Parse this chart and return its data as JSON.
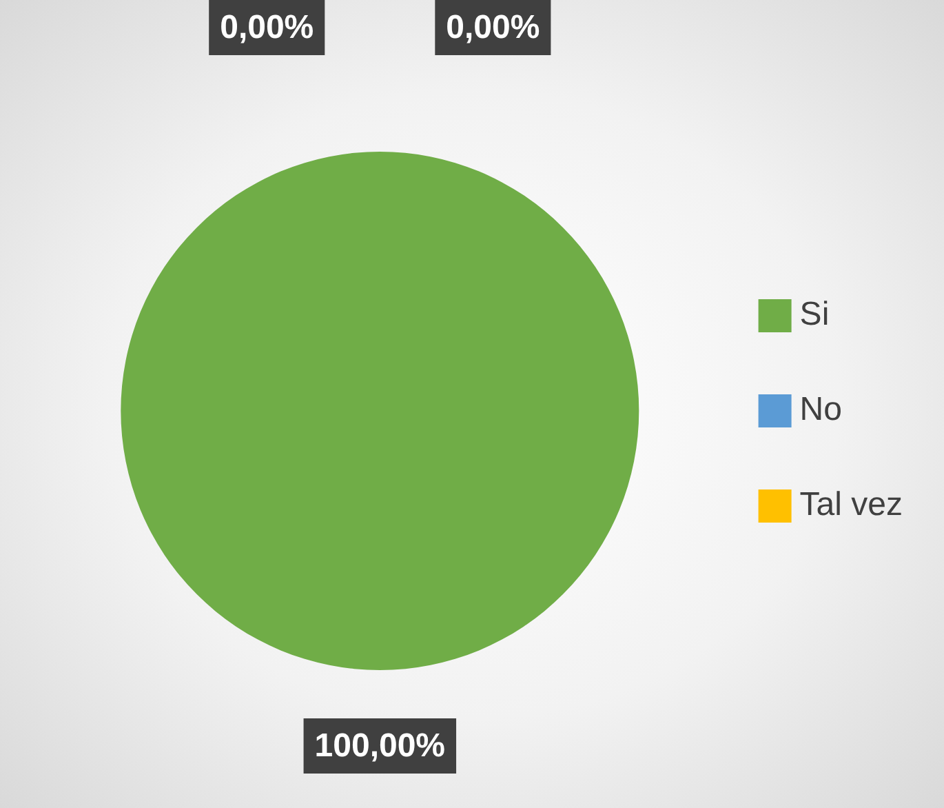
{
  "chart_data": {
    "type": "pie",
    "categories": [
      "Si",
      "No",
      "Tal vez"
    ],
    "values": [
      100,
      0,
      0
    ],
    "colors": [
      "#70ad47",
      "#5b9bd5",
      "#ffc000"
    ],
    "value_labels": [
      "100,00%",
      "0,00%",
      "0,00%"
    ],
    "legend": "right"
  }
}
